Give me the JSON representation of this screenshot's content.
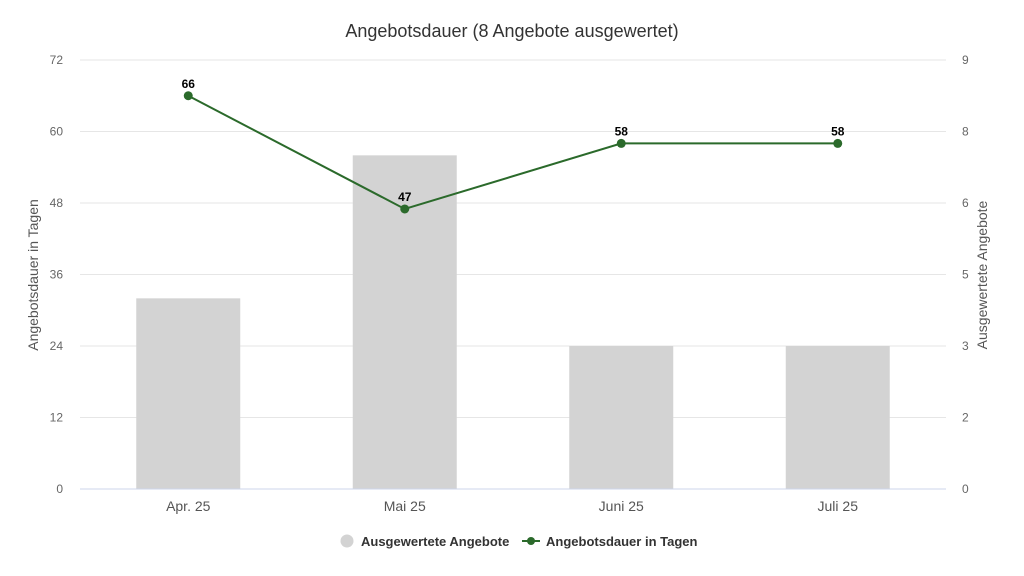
{
  "chart_data": {
    "type": "bar+line",
    "title": "Angebotsdauer (8 Angebote ausgewertet)",
    "categories": [
      "Apr. 25",
      "Mai 25",
      "Juni 25",
      "Juli 25"
    ],
    "y_left": {
      "label": "Angebotsdauer in Tagen",
      "range": [
        0,
        72
      ],
      "ticks": [
        "0",
        "12",
        "24",
        "36",
        "48",
        "60",
        "72"
      ]
    },
    "y_right": {
      "label": "Ausgewertete Angebote",
      "range": [
        0,
        9
      ],
      "ticks": [
        "0",
        "2",
        "3",
        "5",
        "6",
        "8",
        "9"
      ]
    },
    "series": [
      {
        "name": "Ausgewertete Angebote",
        "type": "bar",
        "axis": "right",
        "values": [
          4,
          7,
          3,
          3
        ],
        "color": "#d3d3d3"
      },
      {
        "name": "Angebotsdauer in Tagen",
        "type": "line",
        "axis": "left",
        "values": [
          66,
          47,
          58,
          58
        ],
        "labels": [
          "66",
          "47",
          "58",
          "58"
        ],
        "color": "#2b6a2b"
      }
    ],
    "grid": true,
    "legend_position": "bottom-center"
  }
}
